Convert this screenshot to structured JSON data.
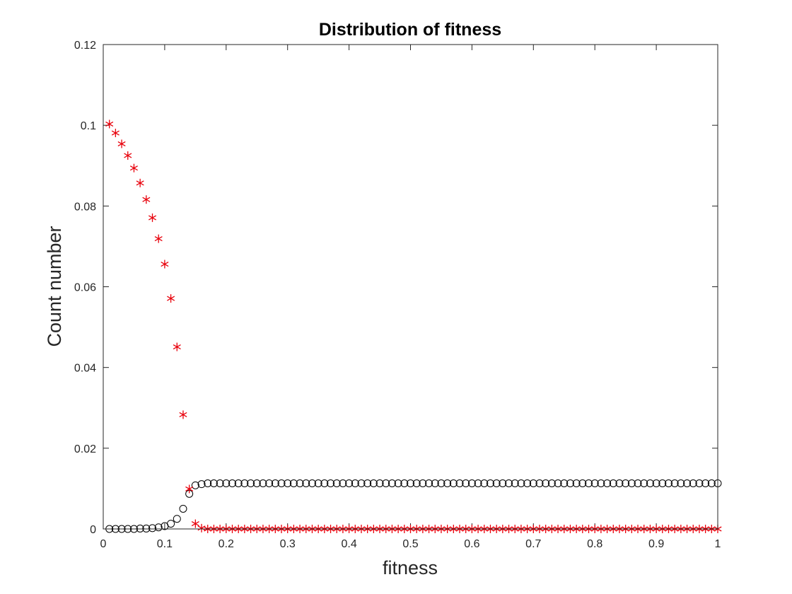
{
  "chart_data": {
    "type": "scatter",
    "title": "Distribution of fitness",
    "xlabel": "fitness",
    "ylabel": "Count number",
    "xlim": [
      0,
      1
    ],
    "ylim": [
      0,
      0.12
    ],
    "xticks": [
      0,
      0.1,
      0.2,
      0.3,
      0.4,
      0.5,
      0.6,
      0.7,
      0.8,
      0.9,
      1
    ],
    "xtick_labels": [
      "0",
      "0.1",
      "0.2",
      "0.3",
      "0.4",
      "0.5",
      "0.6",
      "0.7",
      "0.8",
      "0.9",
      "1"
    ],
    "yticks": [
      0,
      0.02,
      0.04,
      0.06,
      0.08,
      0.1,
      0.12
    ],
    "ytick_labels": [
      "0",
      "0.02",
      "0.04",
      "0.06",
      "0.08",
      "0.1",
      "0.12"
    ],
    "grid": false,
    "series": [
      {
        "marker": "circle",
        "color": "#000000",
        "x": [
          0.01,
          0.02,
          0.03,
          0.04,
          0.05,
          0.06,
          0.07,
          0.08,
          0.09,
          0.1,
          0.11,
          0.12,
          0.13,
          0.14,
          0.15,
          0.16,
          0.17,
          0.18,
          0.19,
          0.2,
          0.21,
          0.22,
          0.23,
          0.24,
          0.25,
          0.26,
          0.27,
          0.28,
          0.29,
          0.3,
          0.31,
          0.32,
          0.33,
          0.34,
          0.35,
          0.36,
          0.37,
          0.38,
          0.39,
          0.4,
          0.41,
          0.42,
          0.43,
          0.44,
          0.45,
          0.46,
          0.47,
          0.48,
          0.49,
          0.5,
          0.51,
          0.52,
          0.53,
          0.54,
          0.55,
          0.56,
          0.57,
          0.58,
          0.59,
          0.6,
          0.61,
          0.62,
          0.63,
          0.64,
          0.65,
          0.66,
          0.67,
          0.68,
          0.69,
          0.7,
          0.71,
          0.72,
          0.73,
          0.74,
          0.75,
          0.76,
          0.77,
          0.78,
          0.79,
          0.8,
          0.81,
          0.82,
          0.83,
          0.84,
          0.85,
          0.86,
          0.87,
          0.88,
          0.89,
          0.9,
          0.91,
          0.92,
          0.93,
          0.94,
          0.95,
          0.96,
          0.97,
          0.98,
          0.99,
          1.0
        ],
        "y": [
          0,
          0,
          0,
          0,
          0,
          0.0001,
          0.0001,
          0.0002,
          0.0004,
          0.0007,
          0.0013,
          0.0025,
          0.005,
          0.0087,
          0.0108,
          0.0111,
          0.0113,
          0.0113,
          0.0113,
          0.0113,
          0.0113,
          0.0113,
          0.0113,
          0.0113,
          0.0113,
          0.0113,
          0.0113,
          0.0113,
          0.0113,
          0.0113,
          0.0113,
          0.0113,
          0.0113,
          0.0113,
          0.0113,
          0.0113,
          0.0113,
          0.0113,
          0.0113,
          0.0113,
          0.0113,
          0.0113,
          0.0113,
          0.0113,
          0.0113,
          0.0113,
          0.0113,
          0.0113,
          0.0113,
          0.0113,
          0.0113,
          0.0113,
          0.0113,
          0.0113,
          0.0113,
          0.0113,
          0.0113,
          0.0113,
          0.0113,
          0.0113,
          0.0113,
          0.0113,
          0.0113,
          0.0113,
          0.0113,
          0.0113,
          0.0113,
          0.0113,
          0.0113,
          0.0113,
          0.0113,
          0.0113,
          0.0113,
          0.0113,
          0.0113,
          0.0113,
          0.0113,
          0.0113,
          0.0113,
          0.0113,
          0.0113,
          0.0113,
          0.0113,
          0.0113,
          0.0113,
          0.0113,
          0.0113,
          0.0113,
          0.0113,
          0.0113,
          0.0113,
          0.0113,
          0.0113,
          0.0113,
          0.0113,
          0.0113,
          0.0113,
          0.0113,
          0.0113,
          0.0113
        ]
      },
      {
        "marker": "asterisk",
        "color": "#e8000b",
        "x": [
          0.01,
          0.02,
          0.03,
          0.04,
          0.05,
          0.06,
          0.07,
          0.08,
          0.09,
          0.1,
          0.11,
          0.12,
          0.13,
          0.14,
          0.15,
          0.16,
          0.17,
          0.18,
          0.19,
          0.2,
          0.21,
          0.22,
          0.23,
          0.24,
          0.25,
          0.26,
          0.27,
          0.28,
          0.29,
          0.3,
          0.31,
          0.32,
          0.33,
          0.34,
          0.35,
          0.36,
          0.37,
          0.38,
          0.39,
          0.4,
          0.41,
          0.42,
          0.43,
          0.44,
          0.45,
          0.46,
          0.47,
          0.48,
          0.49,
          0.5,
          0.51,
          0.52,
          0.53,
          0.54,
          0.55,
          0.56,
          0.57,
          0.58,
          0.59,
          0.6,
          0.61,
          0.62,
          0.63,
          0.64,
          0.65,
          0.66,
          0.67,
          0.68,
          0.69,
          0.7,
          0.71,
          0.72,
          0.73,
          0.74,
          0.75,
          0.76,
          0.77,
          0.78,
          0.79,
          0.8,
          0.81,
          0.82,
          0.83,
          0.84,
          0.85,
          0.86,
          0.87,
          0.88,
          0.89,
          0.9,
          0.91,
          0.92,
          0.93,
          0.94,
          0.95,
          0.96,
          0.97,
          0.98,
          0.99,
          1.0
        ],
        "y": [
          0.1003,
          0.0981,
          0.0954,
          0.0925,
          0.0894,
          0.0857,
          0.0816,
          0.0771,
          0.0719,
          0.0656,
          0.0571,
          0.0451,
          0.0283,
          0.0099,
          0.0013,
          0.0002,
          0,
          0,
          0,
          0,
          0,
          0,
          0,
          0,
          0,
          0,
          0,
          0,
          0,
          0,
          0,
          0,
          0,
          0,
          0,
          0,
          0,
          0,
          0,
          0,
          0,
          0,
          0,
          0,
          0,
          0,
          0,
          0,
          0,
          0,
          0,
          0,
          0,
          0,
          0,
          0,
          0,
          0,
          0,
          0,
          0,
          0,
          0,
          0,
          0,
          0,
          0,
          0,
          0,
          0,
          0,
          0,
          0,
          0,
          0,
          0,
          0,
          0,
          0,
          0,
          0,
          0,
          0,
          0,
          0,
          0,
          0,
          0,
          0,
          0,
          0,
          0,
          0,
          0,
          0,
          0,
          0,
          0,
          0,
          0
        ]
      }
    ]
  }
}
